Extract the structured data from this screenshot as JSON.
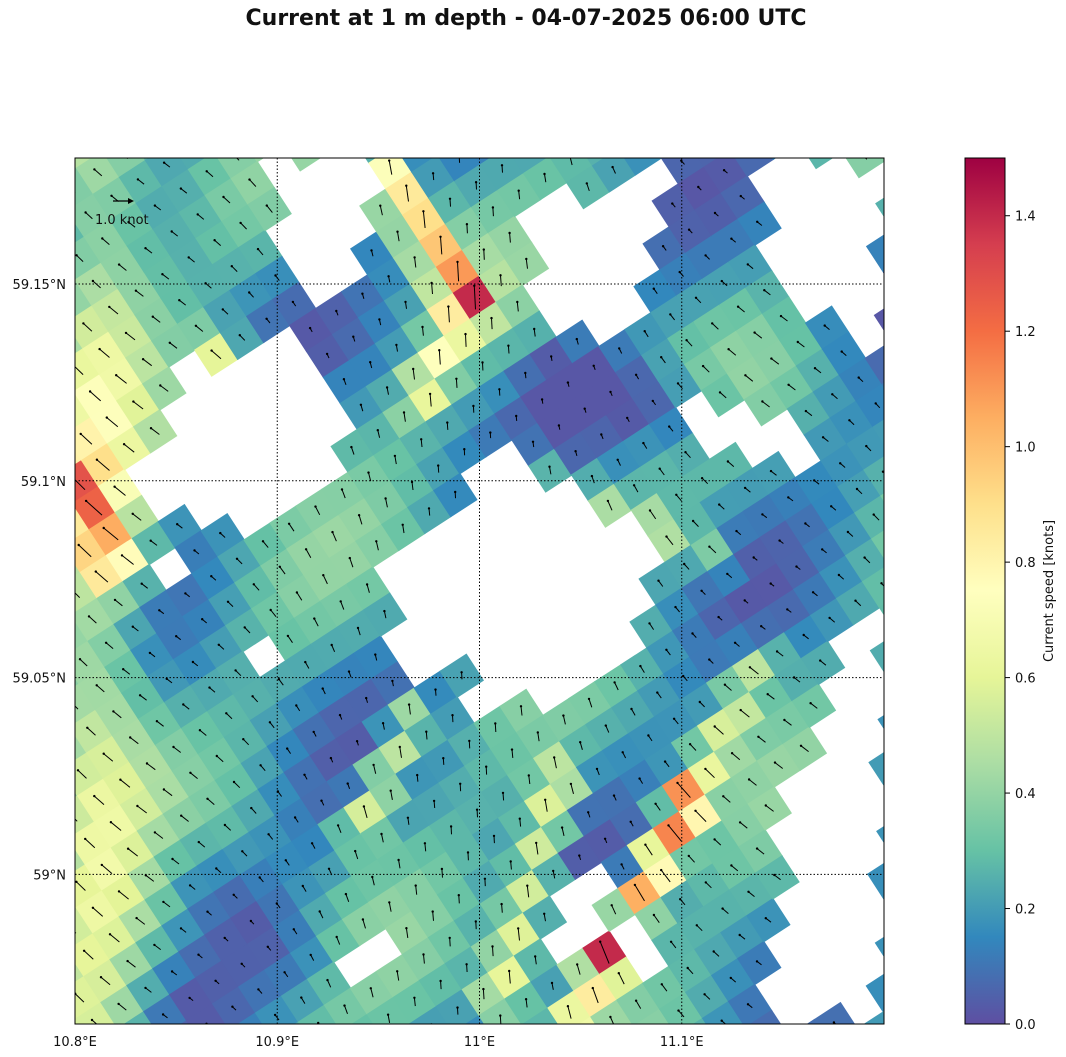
{
  "title": "Current at 1 m depth - 04-07-2025 06:00 UTC",
  "map": {
    "lon_range": [
      10.8,
      11.2
    ],
    "lat_range": [
      58.962,
      59.182
    ],
    "lon_ticks": [
      {
        "value": 10.8,
        "label": "10.8°E"
      },
      {
        "value": 10.9,
        "label": "10.9°E"
      },
      {
        "value": 11.0,
        "label": "11°E"
      },
      {
        "value": 11.1,
        "label": "11.1°E"
      }
    ],
    "lat_ticks": [
      {
        "value": 59.15,
        "label": "59.15°N"
      },
      {
        "value": 59.1,
        "label": "59.1°N"
      },
      {
        "value": 59.05,
        "label": "59.05°N"
      },
      {
        "value": 59.0,
        "label": "59°N"
      }
    ],
    "grid": "dotted"
  },
  "quiver_key": {
    "label": "1.0 knot",
    "value": 1.0
  },
  "colorbar": {
    "label": "Current speed [knots]",
    "range": [
      0,
      1.5
    ],
    "ticks": [
      "0.0",
      "0.2",
      "0.4",
      "0.6",
      "0.8",
      "1.0",
      "1.2",
      "1.4"
    ],
    "colormap": "Spectral_r"
  },
  "colors": {
    "land": "#ffffff",
    "speed_stops": [
      "#5e4fa2",
      "#3288bd",
      "#66c2a5",
      "#abdda4",
      "#e6f598",
      "#ffffbf",
      "#fee08b",
      "#fdae61",
      "#f46d43",
      "#d53e4f",
      "#9e0142"
    ]
  }
}
